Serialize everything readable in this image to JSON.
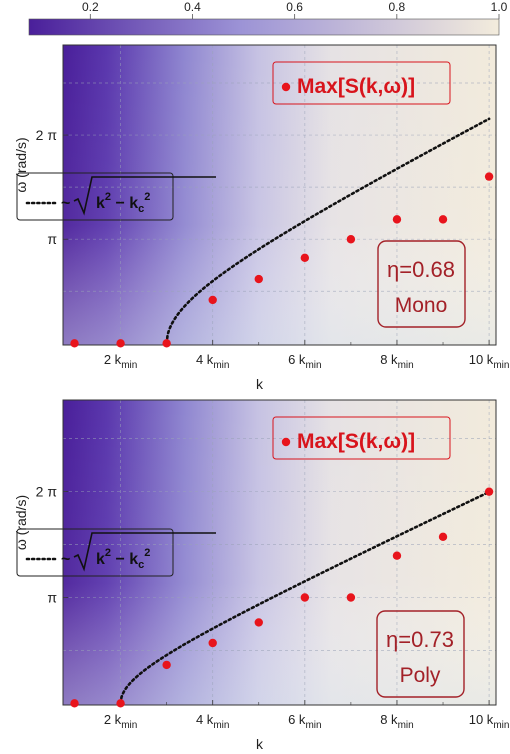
{
  "colorbar": {
    "ticks": [
      "0.2",
      "0.4",
      "0.6",
      "0.8",
      "1.0"
    ],
    "tick_values": [
      0.2,
      0.4,
      0.6,
      0.8,
      1.0
    ],
    "range": [
      0.08,
      1.0
    ],
    "colors": {
      "low": "#4a1f9a",
      "mid": "#9c93d6",
      "high": "#f3ecdc"
    }
  },
  "legend": {
    "max_label": "Max[S(k,ω)]",
    "fit_label": "~√(k² − k_c²)"
  },
  "chart_data": [
    {
      "type": "scatter",
      "xlabel": "k",
      "ylabel": "ω (rad/s)",
      "x_ticks": [
        "2 k_min",
        "4 k_min",
        "6 k_min",
        "8 k_min",
        "10 k_min"
      ],
      "y_ticks": [
        "π",
        "2 π"
      ],
      "series": [
        {
          "name": "Max[S(k,ω)]",
          "x": [
            1,
            2,
            3,
            4,
            5,
            6,
            7,
            8,
            9,
            10
          ],
          "y": [
            0.0,
            0.0,
            0.0,
            1.31,
            1.94,
            2.58,
            3.14,
            3.74,
            3.74,
            5.03
          ]
        }
      ],
      "fit": {
        "k_c": 3.0,
        "amplitude": 0.71
      },
      "annotation": {
        "eta": "η=0.68",
        "type": "Mono"
      }
    },
    {
      "type": "scatter",
      "xlabel": "k",
      "ylabel": "ω (rad/s)",
      "x_ticks": [
        "2 k_min",
        "4 k_min",
        "6 k_min",
        "8 k_min",
        "10 k_min"
      ],
      "y_ticks": [
        "π",
        "2 π"
      ],
      "series": [
        {
          "name": "Max[S(k,ω)]",
          "x": [
            1,
            2,
            3,
            4,
            5,
            6,
            7,
            8,
            9,
            10
          ],
          "y": [
            0.0,
            0.0,
            1.14,
            1.79,
            2.4,
            3.14,
            3.14,
            4.38,
            4.94,
            6.28
          ]
        }
      ],
      "fit": {
        "k_c": 2.0,
        "amplitude": 0.64
      },
      "annotation": {
        "eta": "η=0.73",
        "type": "Poly"
      }
    }
  ]
}
